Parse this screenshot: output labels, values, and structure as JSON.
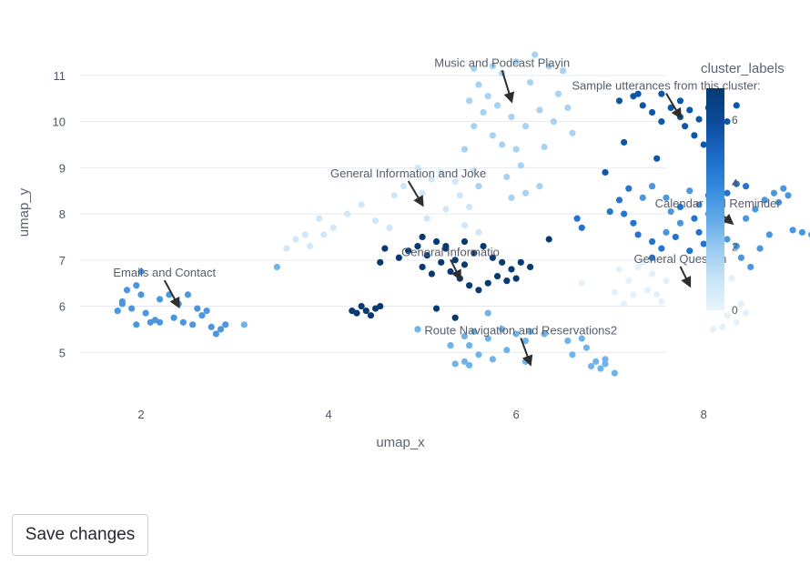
{
  "chart_data": {
    "type": "scatter",
    "xlabel": "umap_x",
    "ylabel": "umap_y",
    "xlim": [
      1.35,
      7.6
    ],
    "ylim": [
      4.0,
      11.55
    ],
    "x_ticks": [
      2,
      4,
      6,
      8
    ],
    "y_ticks": [
      5,
      6,
      7,
      8,
      9,
      10,
      11
    ],
    "grid": "horizontal",
    "colorbar": {
      "title": "cluster_labels",
      "min": 0,
      "max": 7,
      "ticks": [
        0,
        2,
        4,
        6
      ],
      "colorscale": [
        "#e8f4fd",
        "#c6e3f7",
        "#94c9ef",
        "#5aa6e6",
        "#2f86dc",
        "#1a67c4",
        "#0b4a96",
        "#073a74"
      ]
    },
    "clusters": [
      {
        "label": 0,
        "color": "#e3f1fb",
        "points": [
          [
            7.1,
            6.8
          ],
          [
            7.35,
            6.95
          ],
          [
            7.2,
            6.55
          ],
          [
            7.45,
            6.7
          ],
          [
            7.05,
            6.3
          ],
          [
            7.25,
            6.25
          ],
          [
            7.55,
            6.1
          ],
          [
            7.4,
            6.35
          ],
          [
            7.3,
            6.85
          ],
          [
            7.6,
            6.55
          ],
          [
            7.5,
            6.25
          ],
          [
            7.15,
            6.05
          ],
          [
            6.7,
            6.5
          ],
          [
            8.2,
            5.55
          ],
          [
            8.35,
            5.65
          ],
          [
            8.25,
            5.8
          ],
          [
            8.1,
            5.5
          ],
          [
            8.4,
            6.05
          ],
          [
            8.45,
            5.85
          ],
          [
            8.15,
            6.35
          ],
          [
            8.3,
            6.6
          ]
        ]
      },
      {
        "label": 1,
        "color": "#cfe7f8",
        "points": [
          [
            3.8,
            7.3
          ],
          [
            3.95,
            7.55
          ],
          [
            4.05,
            7.7
          ],
          [
            3.9,
            7.9
          ],
          [
            4.2,
            8.0
          ],
          [
            4.35,
            8.2
          ],
          [
            4.5,
            7.85
          ],
          [
            4.65,
            7.7
          ],
          [
            4.8,
            8.6
          ],
          [
            5.0,
            8.45
          ],
          [
            5.1,
            8.75
          ],
          [
            5.2,
            8.9
          ],
          [
            5.25,
            8.1
          ],
          [
            5.05,
            7.9
          ],
          [
            4.7,
            8.4
          ],
          [
            5.35,
            8.7
          ],
          [
            5.4,
            8.4
          ],
          [
            5.5,
            8.15
          ],
          [
            5.45,
            7.75
          ],
          [
            5.6,
            7.6
          ],
          [
            3.55,
            7.25
          ],
          [
            3.65,
            7.45
          ],
          [
            3.75,
            7.55
          ],
          [
            5.55,
            8.95
          ],
          [
            4.95,
            9.0
          ]
        ]
      },
      {
        "label": 2,
        "color": "#a7d2f1",
        "points": [
          [
            5.55,
            11.15
          ],
          [
            5.75,
            11.2
          ],
          [
            5.85,
            11.05
          ],
          [
            6.0,
            11.3
          ],
          [
            6.2,
            11.45
          ],
          [
            6.35,
            11.2
          ],
          [
            6.5,
            11.1
          ],
          [
            5.6,
            10.8
          ],
          [
            5.7,
            10.55
          ],
          [
            5.8,
            10.35
          ],
          [
            5.95,
            10.1
          ],
          [
            6.1,
            9.9
          ],
          [
            6.25,
            10.25
          ],
          [
            6.15,
            10.85
          ],
          [
            6.45,
            10.6
          ],
          [
            6.55,
            10.3
          ],
          [
            5.5,
            10.45
          ],
          [
            5.65,
            10.2
          ],
          [
            5.55,
            9.9
          ],
          [
            5.75,
            9.7
          ],
          [
            5.85,
            9.5
          ],
          [
            6.0,
            9.4
          ],
          [
            6.3,
            9.45
          ],
          [
            5.45,
            9.4
          ],
          [
            6.05,
            9.05
          ],
          [
            5.9,
            8.8
          ],
          [
            6.1,
            8.45
          ],
          [
            5.95,
            8.35
          ],
          [
            6.4,
            10.0
          ],
          [
            6.6,
            9.75
          ],
          [
            5.6,
            8.6
          ],
          [
            6.25,
            8.6
          ]
        ]
      },
      {
        "label": 3,
        "color": "#6fb3ea",
        "points": [
          [
            5.3,
            5.15
          ],
          [
            5.45,
            5.35
          ],
          [
            5.55,
            5.45
          ],
          [
            5.7,
            5.3
          ],
          [
            5.85,
            5.5
          ],
          [
            6.0,
            5.4
          ],
          [
            6.1,
            5.25
          ],
          [
            5.6,
            4.95
          ],
          [
            5.45,
            4.8
          ],
          [
            5.35,
            4.75
          ],
          [
            5.5,
            4.72
          ],
          [
            5.75,
            4.85
          ],
          [
            5.9,
            5.05
          ],
          [
            6.1,
            4.8
          ],
          [
            6.55,
            5.25
          ],
          [
            6.7,
            5.3
          ],
          [
            6.75,
            5.1
          ],
          [
            6.6,
            4.95
          ],
          [
            6.85,
            4.8
          ],
          [
            6.95,
            4.75
          ],
          [
            6.9,
            4.65
          ],
          [
            7.05,
            4.55
          ],
          [
            6.8,
            4.7
          ],
          [
            6.95,
            4.85
          ],
          [
            5.7,
            5.85
          ],
          [
            3.1,
            5.6
          ],
          [
            3.45,
            6.85
          ],
          [
            4.95,
            5.5
          ],
          [
            5.5,
            5.15
          ],
          [
            6.3,
            5.4
          ],
          [
            6.15,
            5.45
          ]
        ]
      },
      {
        "label": 4,
        "color": "#4a97e0",
        "points": [
          [
            1.8,
            6.1
          ],
          [
            1.85,
            6.35
          ],
          [
            1.95,
            6.45
          ],
          [
            2.0,
            6.25
          ],
          [
            1.75,
            5.9
          ],
          [
            1.8,
            6.05
          ],
          [
            1.9,
            5.95
          ],
          [
            2.05,
            5.85
          ],
          [
            2.15,
            5.7
          ],
          [
            2.2,
            6.15
          ],
          [
            2.3,
            6.25
          ],
          [
            2.4,
            6.05
          ],
          [
            2.5,
            6.25
          ],
          [
            2.6,
            5.95
          ],
          [
            2.65,
            5.8
          ],
          [
            2.7,
            5.9
          ],
          [
            2.55,
            5.6
          ],
          [
            2.45,
            5.65
          ],
          [
            2.35,
            5.75
          ],
          [
            2.75,
            5.55
          ],
          [
            2.85,
            5.5
          ],
          [
            2.9,
            5.6
          ],
          [
            2.8,
            5.4
          ],
          [
            2.2,
            5.65
          ],
          [
            2.1,
            5.65
          ],
          [
            1.95,
            5.6
          ],
          [
            2.0,
            6.75
          ],
          [
            7.6,
            8.35
          ],
          [
            7.65,
            8.05
          ],
          [
            7.75,
            7.8
          ],
          [
            7.6,
            7.6
          ],
          [
            7.85,
            8.5
          ],
          [
            7.95,
            8.2
          ],
          [
            8.05,
            8.0
          ],
          [
            8.15,
            7.7
          ],
          [
            8.25,
            7.45
          ],
          [
            8.35,
            7.3
          ],
          [
            8.4,
            7.05
          ],
          [
            8.5,
            6.85
          ],
          [
            8.6,
            7.25
          ],
          [
            8.7,
            7.55
          ],
          [
            8.45,
            7.9
          ],
          [
            8.55,
            8.1
          ],
          [
            8.65,
            8.3
          ],
          [
            8.75,
            8.45
          ],
          [
            8.8,
            8.25
          ],
          [
            8.9,
            8.4
          ],
          [
            8.95,
            7.65
          ],
          [
            9.05,
            7.6
          ],
          [
            9.15,
            7.55
          ],
          [
            9.25,
            7.6
          ],
          [
            7.45,
            8.6
          ],
          [
            7.35,
            8.35
          ],
          [
            8.85,
            8.55
          ]
        ]
      },
      {
        "label": 5,
        "color": "#2473cf",
        "points": [
          [
            7.0,
            8.05
          ],
          [
            7.15,
            8.0
          ],
          [
            7.25,
            7.8
          ],
          [
            7.3,
            7.55
          ],
          [
            7.45,
            7.4
          ],
          [
            7.55,
            7.25
          ],
          [
            7.7,
            7.5
          ],
          [
            7.85,
            7.2
          ],
          [
            8.0,
            7.35
          ],
          [
            7.95,
            7.6
          ],
          [
            7.1,
            8.3
          ],
          [
            7.2,
            8.55
          ],
          [
            8.35,
            8.65
          ],
          [
            8.25,
            8.45
          ],
          [
            8.45,
            8.6
          ],
          [
            6.65,
            7.9
          ],
          [
            6.7,
            7.7
          ],
          [
            8.1,
            8.9
          ],
          [
            7.75,
            8.15
          ],
          [
            7.45,
            7.05
          ],
          [
            8.05,
            8.4
          ],
          [
            7.9,
            7.9
          ]
        ]
      },
      {
        "label": 6,
        "color": "#0d57a8",
        "points": [
          [
            7.1,
            10.45
          ],
          [
            7.25,
            10.55
          ],
          [
            7.35,
            10.35
          ],
          [
            7.45,
            10.2
          ],
          [
            7.55,
            10.0
          ],
          [
            7.65,
            10.3
          ],
          [
            7.75,
            10.45
          ],
          [
            7.85,
            10.25
          ],
          [
            7.95,
            10.05
          ],
          [
            8.05,
            10.3
          ],
          [
            8.15,
            10.2
          ],
          [
            8.25,
            10.0
          ],
          [
            8.35,
            10.35
          ],
          [
            7.3,
            10.6
          ],
          [
            7.55,
            10.6
          ],
          [
            7.75,
            10.1
          ],
          [
            7.15,
            9.55
          ],
          [
            7.5,
            9.2
          ],
          [
            7.9,
            9.7
          ],
          [
            8.0,
            9.5
          ],
          [
            7.8,
            9.9
          ],
          [
            8.1,
            9.95
          ],
          [
            6.95,
            8.9
          ]
        ]
      },
      {
        "label": 7,
        "color": "#083a72",
        "points": [
          [
            4.6,
            7.25
          ],
          [
            4.75,
            7.05
          ],
          [
            4.85,
            7.2
          ],
          [
            4.95,
            7.3
          ],
          [
            5.05,
            7.1
          ],
          [
            5.15,
            7.4
          ],
          [
            5.25,
            7.25
          ],
          [
            5.35,
            7.0
          ],
          [
            5.45,
            6.9
          ],
          [
            5.55,
            7.15
          ],
          [
            5.65,
            7.3
          ],
          [
            5.75,
            7.05
          ],
          [
            5.85,
            6.95
          ],
          [
            5.95,
            6.8
          ],
          [
            6.05,
            6.95
          ],
          [
            6.15,
            6.85
          ],
          [
            5.0,
            6.85
          ],
          [
            5.1,
            6.7
          ],
          [
            5.2,
            6.95
          ],
          [
            5.3,
            6.75
          ],
          [
            5.4,
            6.6
          ],
          [
            5.5,
            6.45
          ],
          [
            5.6,
            6.35
          ],
          [
            5.7,
            6.5
          ],
          [
            5.8,
            6.65
          ],
          [
            5.9,
            6.55
          ],
          [
            6.0,
            6.6
          ],
          [
            5.25,
            7.3
          ],
          [
            5.45,
            7.4
          ],
          [
            4.55,
            6.95
          ],
          [
            4.3,
            5.85
          ],
          [
            4.35,
            6.0
          ],
          [
            4.4,
            5.9
          ],
          [
            4.45,
            5.8
          ],
          [
            4.5,
            5.95
          ],
          [
            4.25,
            5.9
          ],
          [
            4.55,
            6.0
          ],
          [
            5.15,
            5.95
          ],
          [
            5.35,
            5.75
          ],
          [
            6.35,
            7.45
          ],
          [
            5.0,
            7.5
          ]
        ]
      }
    ],
    "annotations": [
      {
        "text": "Music and Podcast Playin",
        "ax": 5.85,
        "ay": 11.15,
        "px": 5.95,
        "py": 10.45
      },
      {
        "text": "Sample utterances from this cluster:",
        "ax": 7.6,
        "ay": 10.65,
        "px": 7.75,
        "py": 10.1
      },
      {
        "text": "General Information and Joke",
        "ax": 4.85,
        "ay": 8.75,
        "px": 5.0,
        "py": 8.2
      },
      {
        "text": "Calendar and Reminder",
        "ax": 8.15,
        "ay": 8.1,
        "px": 8.3,
        "py": 7.8
      },
      {
        "text": "General Informatio",
        "ax": 5.3,
        "ay": 7.05,
        "px": 5.4,
        "py": 6.6
      },
      {
        "text": "Emails and Contact",
        "ax": 2.25,
        "ay": 6.6,
        "px": 2.4,
        "py": 6.0
      },
      {
        "text": "General Question",
        "ax": 7.75,
        "ay": 6.9,
        "px": 7.85,
        "py": 6.45
      },
      {
        "text": "Route Navigation and Reservations2",
        "ax": 6.05,
        "ay": 5.35,
        "px": 6.15,
        "py": 4.75
      }
    ]
  },
  "actions": {
    "save_label": "Save changes"
  }
}
